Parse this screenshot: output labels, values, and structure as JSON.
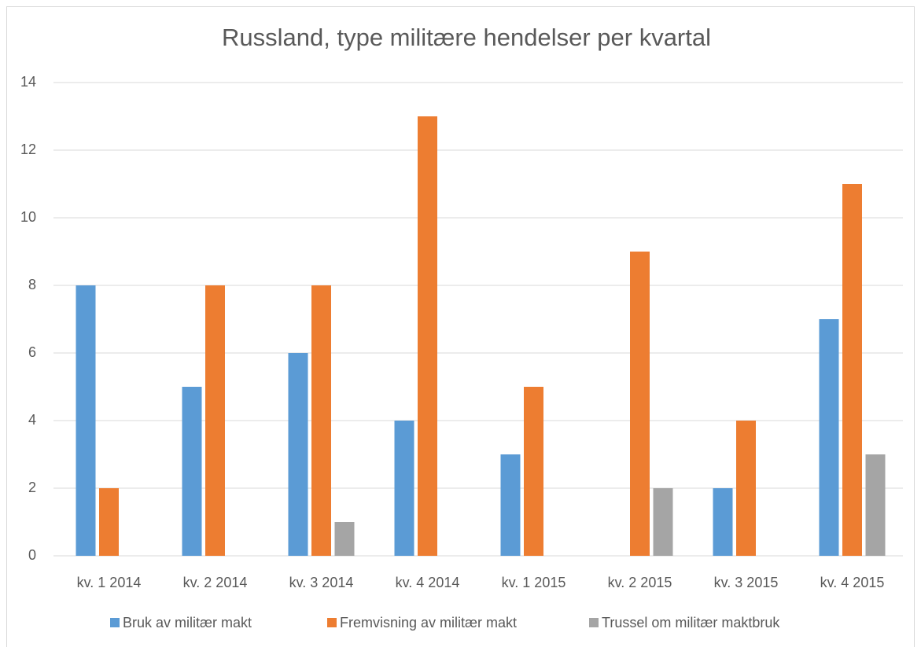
{
  "chart_data": {
    "type": "bar",
    "title": "Russland, type militære hendelser per kvartal",
    "categories": [
      "kv. 1 2014",
      "kv. 2 2014",
      "kv. 3 2014",
      "kv. 4 2014",
      "kv. 1 2015",
      "kv. 2 2015",
      "kv. 3 2015",
      "kv. 4 2015"
    ],
    "series": [
      {
        "name": "Bruk av militær makt",
        "color": "#5b9bd5",
        "values": [
          8,
          5,
          6,
          4,
          3,
          0,
          2,
          7
        ]
      },
      {
        "name": "Fremvisning av militær makt",
        "color": "#ed7d31",
        "values": [
          2,
          8,
          8,
          13,
          5,
          9,
          4,
          11
        ]
      },
      {
        "name": "Trussel om militær maktbruk",
        "color": "#a5a5a5",
        "values": [
          0,
          0,
          1,
          0,
          0,
          2,
          0,
          3
        ]
      }
    ],
    "ylim": [
      0,
      14
    ],
    "yticks": [
      0,
      2,
      4,
      6,
      8,
      10,
      12,
      14
    ],
    "grid": true,
    "legend": "bottom"
  }
}
